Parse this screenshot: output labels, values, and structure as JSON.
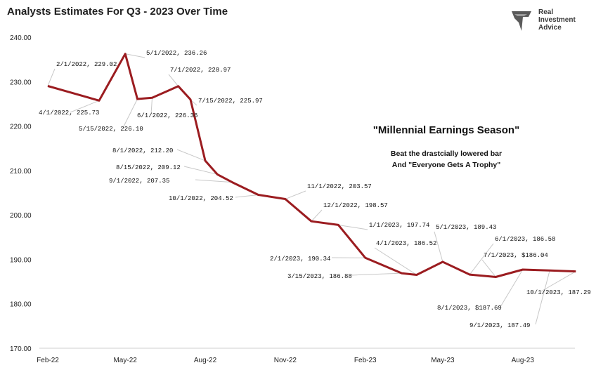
{
  "chart_data": {
    "type": "line",
    "title": "Analysts Estimates For Q3 - 2023 Over Time",
    "xlabel": "",
    "ylabel": "",
    "ylim": [
      170,
      240
    ],
    "yticks": [
      "170.00",
      "180.00",
      "190.00",
      "200.00",
      "210.00",
      "220.00",
      "230.00",
      "240.00"
    ],
    "xticks": [
      {
        "label": "Feb-22",
        "date": "2022-02-01"
      },
      {
        "label": "May-22",
        "date": "2022-05-01"
      },
      {
        "label": "Aug-22",
        "date": "2022-08-01"
      },
      {
        "label": "Nov-22",
        "date": "2022-11-01"
      },
      {
        "label": "Feb-23",
        "date": "2023-02-01"
      },
      {
        "label": "May-23",
        "date": "2023-05-01"
      },
      {
        "label": "Aug-23",
        "date": "2023-08-01"
      }
    ],
    "series": [
      {
        "color": "#9b1c20",
        "points": [
          {
            "date": "2022-02-01",
            "value": 229.02,
            "label": "2/1/2022,  229.02"
          },
          {
            "date": "2022-04-01",
            "value": 225.73,
            "label": "4/1/2022,  225.73"
          },
          {
            "date": "2022-05-01",
            "value": 236.26,
            "label": "5/1/2022,  236.26"
          },
          {
            "date": "2022-05-15",
            "value": 226.1,
            "label": "5/15/2022,  226.10"
          },
          {
            "date": "2022-06-01",
            "value": 226.36,
            "label": "6/1/2022,  226.36"
          },
          {
            "date": "2022-07-01",
            "value": 228.97,
            "label": "7/1/2022,  228.97"
          },
          {
            "date": "2022-07-15",
            "value": 225.97,
            "label": "7/15/2022,  225.97"
          },
          {
            "date": "2022-08-01",
            "value": 212.2,
            "label": "8/1/2022,  212.20"
          },
          {
            "date": "2022-08-15",
            "value": 209.12,
            "label": "8/15/2022,  209.12"
          },
          {
            "date": "2022-09-01",
            "value": 207.35,
            "label": "9/1/2022,  207.35"
          },
          {
            "date": "2022-10-01",
            "value": 204.52,
            "label": "10/1/2022,  204.52"
          },
          {
            "date": "2022-11-01",
            "value": 203.57,
            "label": "11/1/2022,  203.57"
          },
          {
            "date": "2022-12-01",
            "value": 198.57,
            "label": "12/1/2022,  198.57"
          },
          {
            "date": "2023-01-01",
            "value": 197.74,
            "label": "1/1/2023,  197.74"
          },
          {
            "date": "2023-02-01",
            "value": 190.34,
            "label": "2/1/2023,  190.34"
          },
          {
            "date": "2023-03-15",
            "value": 186.88,
            "label": "3/15/2023,  186.88"
          },
          {
            "date": "2023-04-01",
            "value": 186.52,
            "label": "4/1/2023,  186.52"
          },
          {
            "date": "2023-05-01",
            "value": 189.43,
            "label": "5/1/2023,  189.43"
          },
          {
            "date": "2023-06-01",
            "value": 186.58,
            "label": "6/1/2023,  186.58"
          },
          {
            "date": "2023-07-01",
            "value": 186.04,
            "label": "7/1/2023,  $186.04"
          },
          {
            "date": "2023-08-01",
            "value": 187.69,
            "label": "8/1/2023,  $187.69"
          },
          {
            "date": "2023-09-01",
            "value": 187.49,
            "label": "9/1/2023,  187.49"
          },
          {
            "date": "2023-10-01",
            "value": 187.29,
            "label": "10/1/2023,  187.29"
          }
        ]
      }
    ],
    "annotation": {
      "title": "\"Millennial Earnings Season\"",
      "line1": "Beat the drastcially lowered bar",
      "line2": "And \"Everyone Gets A Trophy\""
    },
    "grid": false,
    "legend": "none"
  },
  "logo": {
    "text_lines": [
      "Real",
      "Investment",
      "Advice"
    ],
    "icon": "eagle-shield-icon"
  }
}
